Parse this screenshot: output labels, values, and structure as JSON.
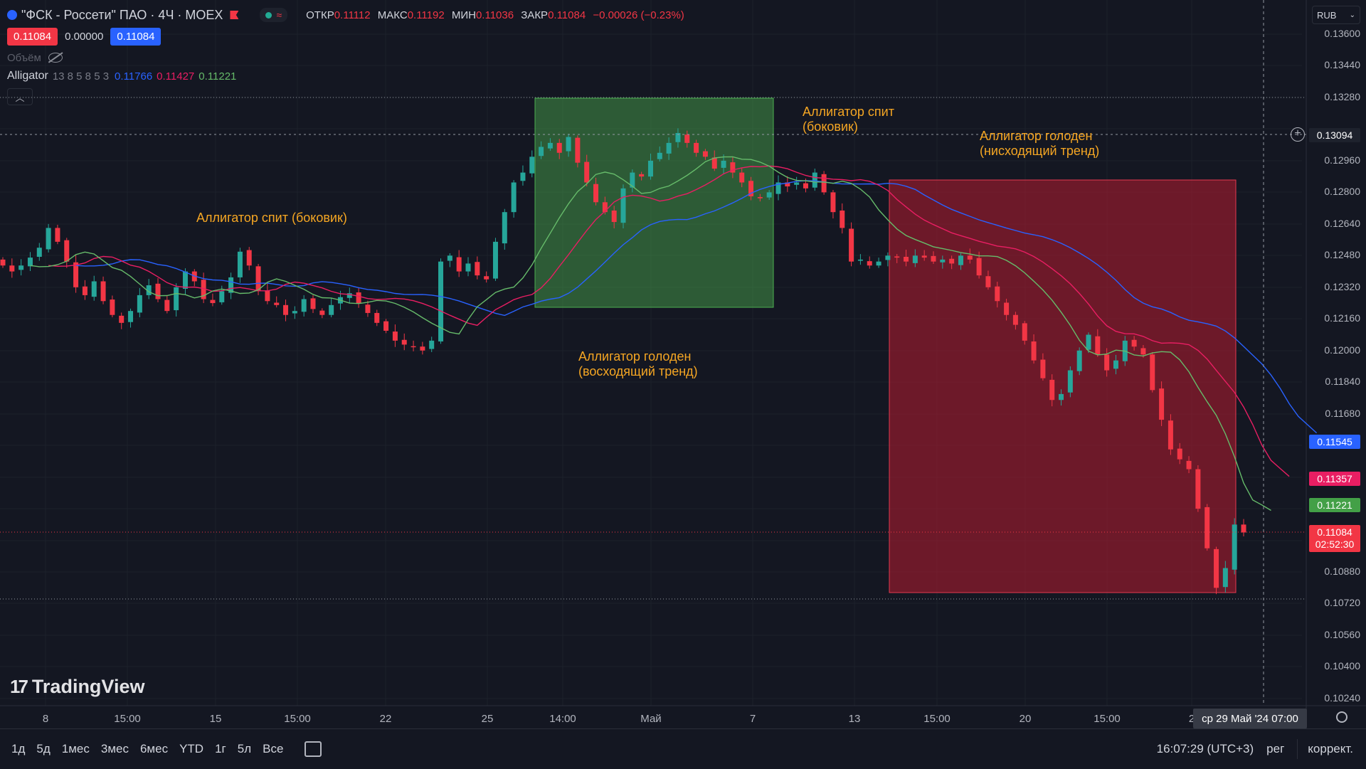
{
  "header": {
    "title": "\"ФСК - Россети\" ПАО · 4Ч · MOEX",
    "ohlc": {
      "open_label": "ОТКР",
      "open": "0.11112",
      "high_label": "МАКС",
      "high": "0.11192",
      "low_label": "МИН",
      "low": "0.11036",
      "close_label": "ЗАКР",
      "close": "0.11084",
      "change": "−0.00026 (−0.23%)"
    },
    "bid": "0.11084",
    "spread": "0.00000",
    "ask": "0.11084",
    "volume_label": "Объём",
    "indicator": {
      "name": "Alligator",
      "params": "13 8 5 8 5 3",
      "jaw": "0.11766",
      "teeth": "0.11427",
      "lips": "0.11221"
    }
  },
  "currency": "RUB",
  "annotations": [
    "Аллигатор спит (боковик)",
    "Аллигатор голоден",
    "(восходящий тренд)",
    "Аллигатор спит",
    "(боковик)",
    "Аллигатор голоден",
    "(нисходящий тренд)"
  ],
  "price_axis": [
    "0.13600",
    "0.13440",
    "0.13280",
    "0.12960",
    "0.12800",
    "0.12640",
    "0.12480",
    "0.12320",
    "0.12160",
    "0.12000",
    "0.11840",
    "0.11680",
    "0.10880",
    "0.10720",
    "0.10560",
    "0.10400",
    "0.10240"
  ],
  "price_tags": {
    "crosshair": "0.13094",
    "jaw": "0.11545",
    "teeth": "0.11357",
    "lips": "0.11221",
    "last": "0.11084",
    "countdown": "02:52:30"
  },
  "time_axis": [
    "8",
    "15:00",
    "15",
    "15:00",
    "22",
    "25",
    "14:00",
    "Май",
    "7",
    "13",
    "15:00",
    "20",
    "15:00",
    "2"
  ],
  "cursor_time": "ср 29 Май '24   07:00",
  "bottom": {
    "ranges": [
      "1д",
      "5д",
      "1мес",
      "3мес",
      "6мес",
      "YTD",
      "1г",
      "5л",
      "Все"
    ],
    "clock": "16:07:29 (UTC+3)",
    "session": "рег",
    "adjust": "коррект."
  },
  "logo_text": "TradingView",
  "colors": {
    "up": "#26a69a",
    "down": "#f23645",
    "jaw": "#2962ff",
    "teeth": "#e91e63",
    "lips": "#66bb6a",
    "annotation": "#f5a623"
  },
  "chart_data": {
    "type": "candlestick",
    "title": "\"ФСК - Россети\" ПАО · 4Ч · MOEX",
    "ylim": [
      0.1016,
      0.1368
    ],
    "grid": true,
    "series": [
      {
        "name": "Alligator",
        "values": [
          0.11766,
          0.11427,
          0.11221
        ]
      }
    ],
    "path": [
      0.1243,
      0.124,
      0.1243,
      0.1247,
      0.1252,
      0.1262,
      0.1255,
      0.1245,
      0.1232,
      0.1228,
      0.1235,
      0.1225,
      0.1218,
      0.1214,
      0.122,
      0.1228,
      0.1233,
      0.1226,
      0.122,
      0.1232,
      0.124,
      0.1235,
      0.1226,
      0.1224,
      0.123,
      0.1237,
      0.125,
      0.1243,
      0.123,
      0.1225,
      0.1223,
      0.1218,
      0.122,
      0.1226,
      0.1221,
      0.1218,
      0.1223,
      0.1227,
      0.1229,
      0.1224,
      0.1219,
      0.1214,
      0.121,
      0.1205,
      0.1203,
      0.1202,
      0.12,
      0.1205,
      0.1245,
      0.1248,
      0.124,
      0.1244,
      0.1238,
      0.1236,
      0.1255,
      0.127,
      0.1285,
      0.129,
      0.1298,
      0.1303,
      0.1305,
      0.13,
      0.1308,
      0.1295,
      0.1285,
      0.1275,
      0.127,
      0.1265,
      0.1282,
      0.129,
      0.1288,
      0.1296,
      0.13,
      0.1305,
      0.131,
      0.1305,
      0.13,
      0.1298,
      0.1292,
      0.1296,
      0.129,
      0.1285,
      0.1278,
      0.1277,
      0.128,
      0.1285,
      0.1283,
      0.1285,
      0.1282,
      0.129,
      0.128,
      0.127,
      0.1262,
      0.1245,
      0.1246,
      0.1243,
      0.1245,
      0.1248,
      0.1247,
      0.1245,
      0.1248,
      0.1247,
      0.1245,
      0.1246,
      0.1244,
      0.1248,
      0.1246,
      0.1238,
      0.1232,
      0.1225,
      0.1218,
      0.1213,
      0.1205,
      0.1195,
      0.1186,
      0.1175,
      0.1178,
      0.119,
      0.12,
      0.1208,
      0.1198,
      0.119,
      0.1195,
      0.1205,
      0.1202,
      0.1198,
      0.118,
      0.1165,
      0.115,
      0.1145,
      0.114,
      0.112,
      0.11,
      0.108,
      0.109,
      0.1112,
      0.1108
    ]
  }
}
